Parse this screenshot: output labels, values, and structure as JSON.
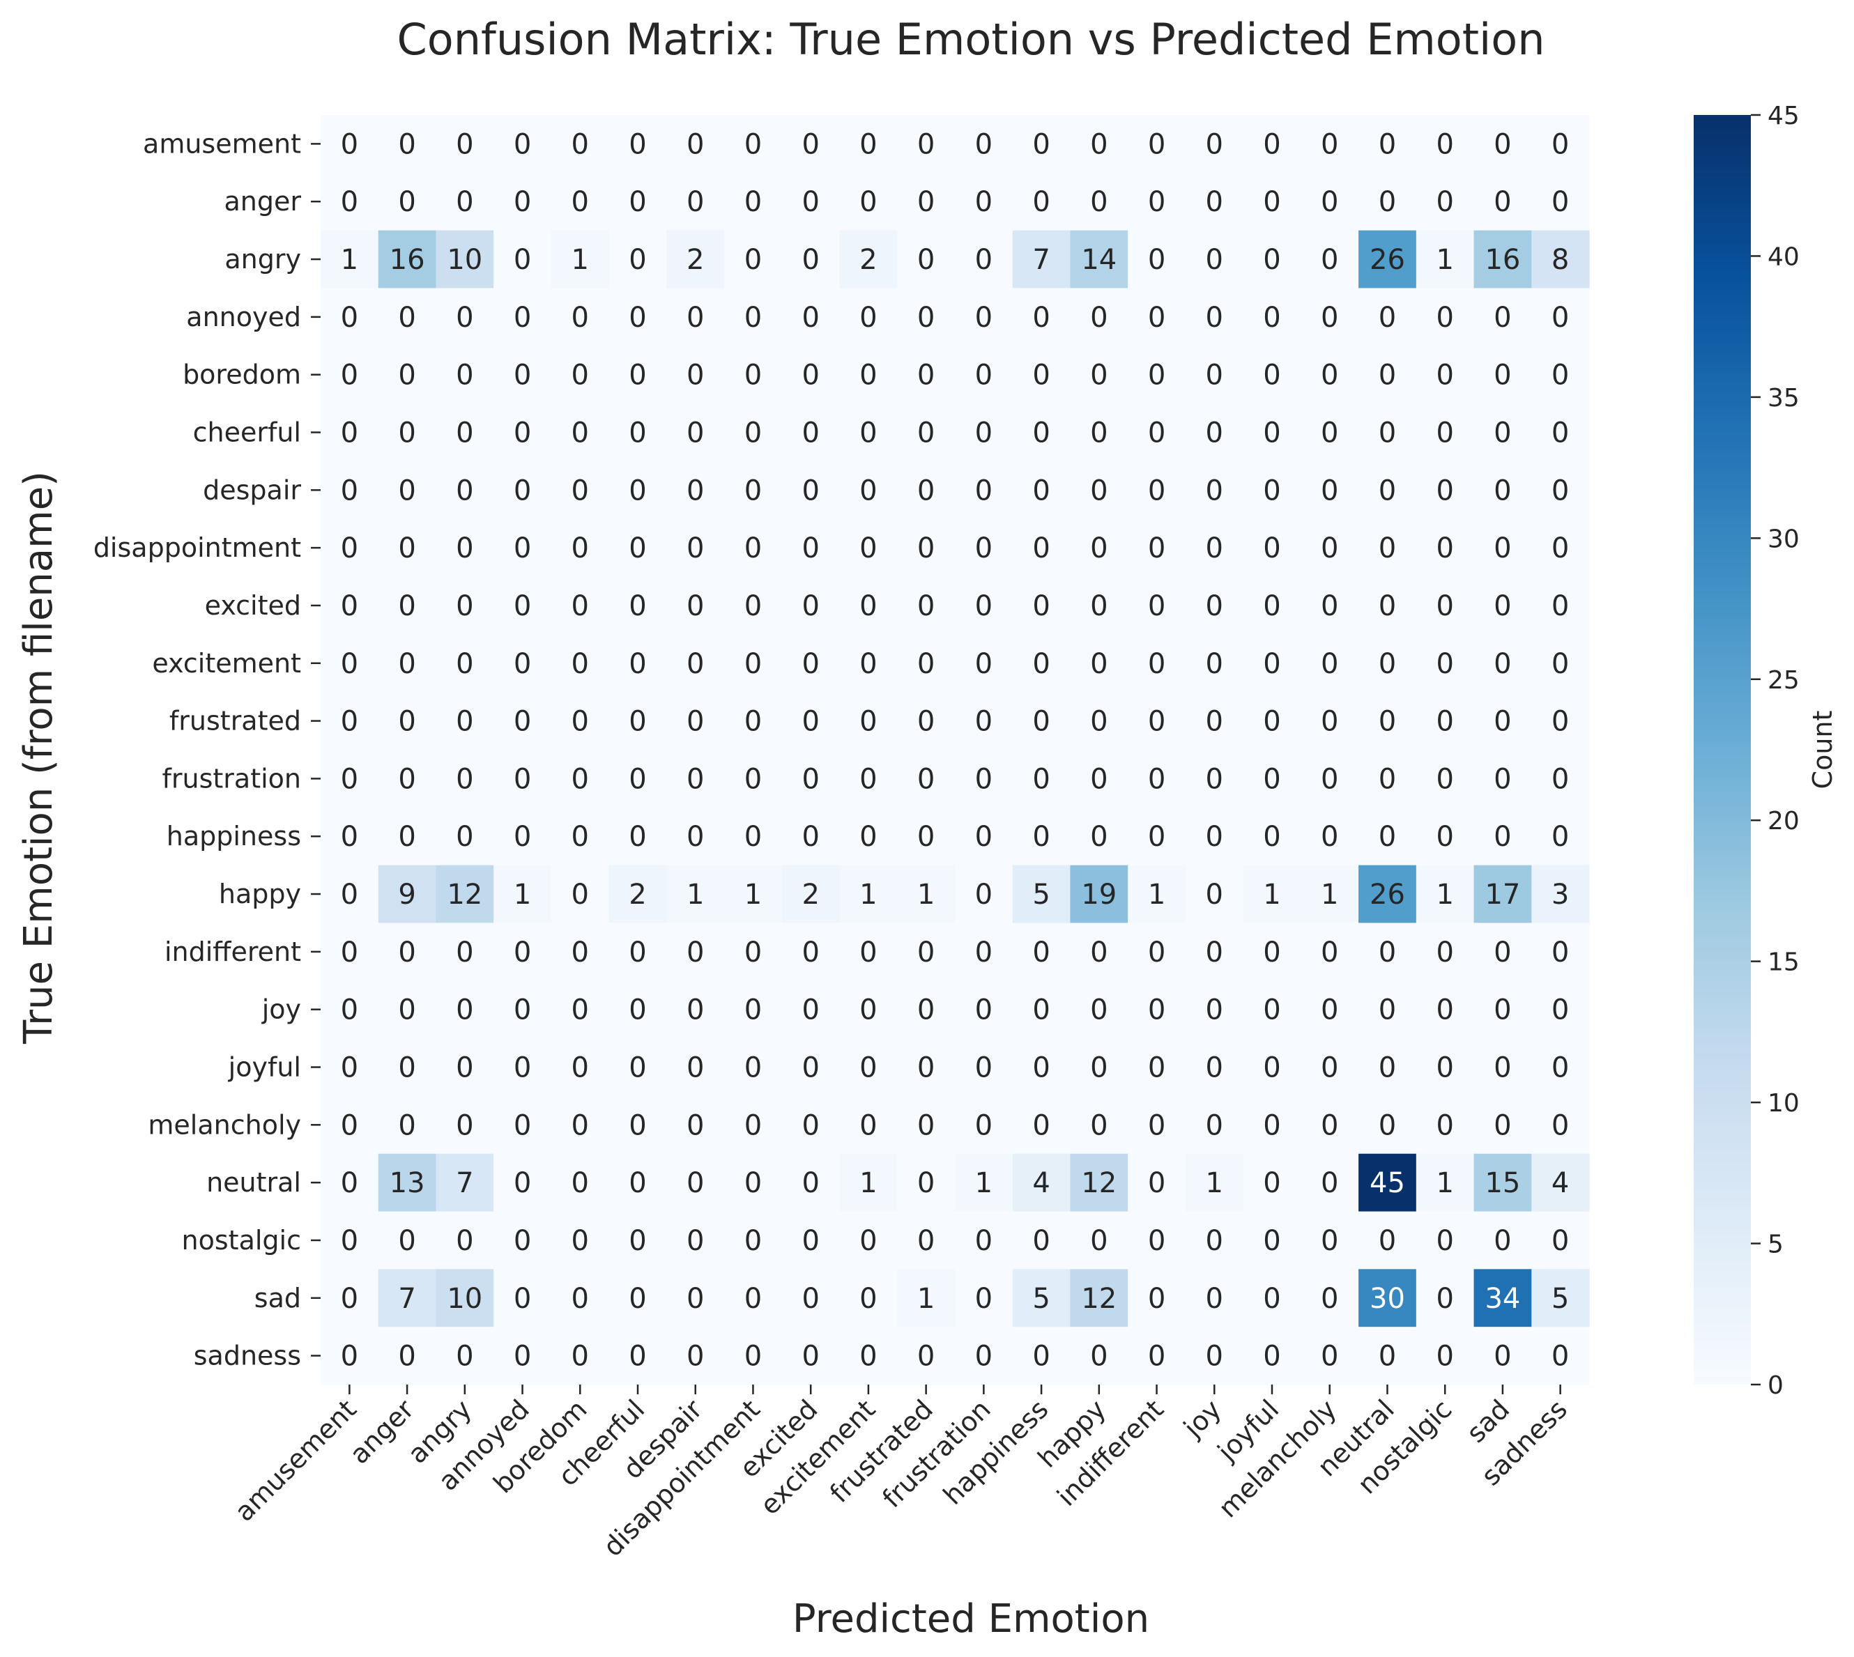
{
  "chart_data": {
    "type": "heatmap",
    "title": "Confusion Matrix: True Emotion vs Predicted Emotion",
    "xlabel": "Predicted Emotion",
    "ylabel": "True Emotion (from filename)",
    "categories_x": [
      "amusement",
      "anger",
      "angry",
      "annoyed",
      "boredom",
      "cheerful",
      "despair",
      "disappointment",
      "excited",
      "excitement",
      "frustrated",
      "frustration",
      "happiness",
      "happy",
      "indifferent",
      "joy",
      "joyful",
      "melancholy",
      "neutral",
      "nostalgic",
      "sad",
      "sadness"
    ],
    "categories_y": [
      "amusement",
      "anger",
      "angry",
      "annoyed",
      "boredom",
      "cheerful",
      "despair",
      "disappointment",
      "excited",
      "excitement",
      "frustrated",
      "frustration",
      "happiness",
      "happy",
      "indifferent",
      "joy",
      "joyful",
      "melancholy",
      "neutral",
      "nostalgic",
      "sad",
      "sadness"
    ],
    "values": [
      [
        0,
        0,
        0,
        0,
        0,
        0,
        0,
        0,
        0,
        0,
        0,
        0,
        0,
        0,
        0,
        0,
        0,
        0,
        0,
        0,
        0,
        0
      ],
      [
        0,
        0,
        0,
        0,
        0,
        0,
        0,
        0,
        0,
        0,
        0,
        0,
        0,
        0,
        0,
        0,
        0,
        0,
        0,
        0,
        0,
        0
      ],
      [
        1,
        16,
        10,
        0,
        1,
        0,
        2,
        0,
        0,
        2,
        0,
        0,
        7,
        14,
        0,
        0,
        0,
        0,
        26,
        1,
        16,
        8
      ],
      [
        0,
        0,
        0,
        0,
        0,
        0,
        0,
        0,
        0,
        0,
        0,
        0,
        0,
        0,
        0,
        0,
        0,
        0,
        0,
        0,
        0,
        0
      ],
      [
        0,
        0,
        0,
        0,
        0,
        0,
        0,
        0,
        0,
        0,
        0,
        0,
        0,
        0,
        0,
        0,
        0,
        0,
        0,
        0,
        0,
        0
      ],
      [
        0,
        0,
        0,
        0,
        0,
        0,
        0,
        0,
        0,
        0,
        0,
        0,
        0,
        0,
        0,
        0,
        0,
        0,
        0,
        0,
        0,
        0
      ],
      [
        0,
        0,
        0,
        0,
        0,
        0,
        0,
        0,
        0,
        0,
        0,
        0,
        0,
        0,
        0,
        0,
        0,
        0,
        0,
        0,
        0,
        0
      ],
      [
        0,
        0,
        0,
        0,
        0,
        0,
        0,
        0,
        0,
        0,
        0,
        0,
        0,
        0,
        0,
        0,
        0,
        0,
        0,
        0,
        0,
        0
      ],
      [
        0,
        0,
        0,
        0,
        0,
        0,
        0,
        0,
        0,
        0,
        0,
        0,
        0,
        0,
        0,
        0,
        0,
        0,
        0,
        0,
        0,
        0
      ],
      [
        0,
        0,
        0,
        0,
        0,
        0,
        0,
        0,
        0,
        0,
        0,
        0,
        0,
        0,
        0,
        0,
        0,
        0,
        0,
        0,
        0,
        0
      ],
      [
        0,
        0,
        0,
        0,
        0,
        0,
        0,
        0,
        0,
        0,
        0,
        0,
        0,
        0,
        0,
        0,
        0,
        0,
        0,
        0,
        0,
        0
      ],
      [
        0,
        0,
        0,
        0,
        0,
        0,
        0,
        0,
        0,
        0,
        0,
        0,
        0,
        0,
        0,
        0,
        0,
        0,
        0,
        0,
        0,
        0
      ],
      [
        0,
        0,
        0,
        0,
        0,
        0,
        0,
        0,
        0,
        0,
        0,
        0,
        0,
        0,
        0,
        0,
        0,
        0,
        0,
        0,
        0,
        0
      ],
      [
        0,
        9,
        12,
        1,
        0,
        2,
        1,
        1,
        2,
        1,
        1,
        0,
        5,
        19,
        1,
        0,
        1,
        1,
        26,
        1,
        17,
        3
      ],
      [
        0,
        0,
        0,
        0,
        0,
        0,
        0,
        0,
        0,
        0,
        0,
        0,
        0,
        0,
        0,
        0,
        0,
        0,
        0,
        0,
        0,
        0
      ],
      [
        0,
        0,
        0,
        0,
        0,
        0,
        0,
        0,
        0,
        0,
        0,
        0,
        0,
        0,
        0,
        0,
        0,
        0,
        0,
        0,
        0,
        0
      ],
      [
        0,
        0,
        0,
        0,
        0,
        0,
        0,
        0,
        0,
        0,
        0,
        0,
        0,
        0,
        0,
        0,
        0,
        0,
        0,
        0,
        0,
        0
      ],
      [
        0,
        0,
        0,
        0,
        0,
        0,
        0,
        0,
        0,
        0,
        0,
        0,
        0,
        0,
        0,
        0,
        0,
        0,
        0,
        0,
        0,
        0
      ],
      [
        0,
        13,
        7,
        0,
        0,
        0,
        0,
        0,
        0,
        1,
        0,
        1,
        4,
        12,
        0,
        1,
        0,
        0,
        45,
        1,
        15,
        4
      ],
      [
        0,
        0,
        0,
        0,
        0,
        0,
        0,
        0,
        0,
        0,
        0,
        0,
        0,
        0,
        0,
        0,
        0,
        0,
        0,
        0,
        0,
        0
      ],
      [
        0,
        7,
        10,
        0,
        0,
        0,
        0,
        0,
        0,
        0,
        1,
        0,
        5,
        12,
        0,
        0,
        0,
        0,
        30,
        0,
        34,
        5
      ],
      [
        0,
        0,
        0,
        0,
        0,
        0,
        0,
        0,
        0,
        0,
        0,
        0,
        0,
        0,
        0,
        0,
        0,
        0,
        0,
        0,
        0,
        0
      ]
    ],
    "colorbar": {
      "label": "Count",
      "range": [
        0,
        45
      ],
      "ticks": [
        0,
        5,
        10,
        15,
        20,
        25,
        30,
        35,
        40,
        45
      ],
      "colormap": "Blues",
      "colormap_stops": [
        "#f7fbff",
        "#deebf7",
        "#c6dbef",
        "#9ecae1",
        "#6baed6",
        "#4292c6",
        "#2171b5",
        "#08519c",
        "#08306b"
      ]
    },
    "annotation_color_dark": "#262626",
    "annotation_color_light": "#ffffff",
    "grid": false
  }
}
